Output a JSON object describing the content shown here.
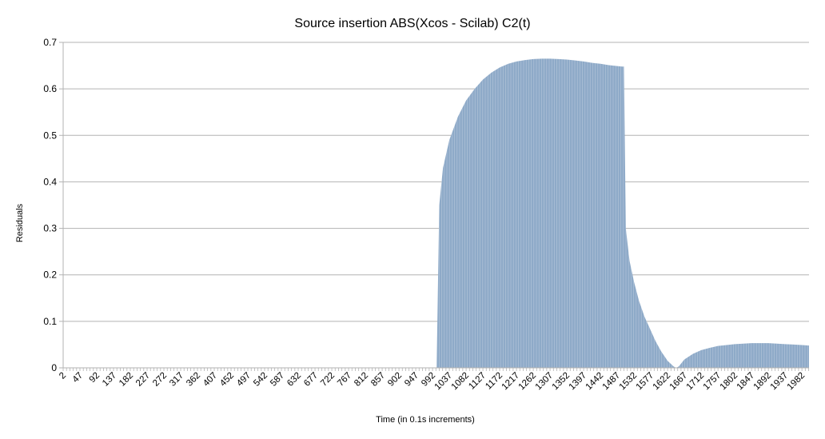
{
  "chart_data": {
    "type": "bar",
    "title": "Source insertion ABS(Xcos - Scilab) C2(t)",
    "xlabel": "Time (in 0.1s increments)",
    "ylabel": "Residuals",
    "ylim": [
      0,
      0.7
    ],
    "yticks": [
      "0",
      "0.1",
      "0.2",
      "0.3",
      "0.4",
      "0.5",
      "0.6",
      "0.7"
    ],
    "grid": true,
    "legend": "none",
    "bar_color": "#8eaac8",
    "x_range": [
      2,
      2001
    ],
    "xtick_labels": [
      "2",
      "47",
      "92",
      "137",
      "182",
      "227",
      "272",
      "317",
      "362",
      "407",
      "452",
      "497",
      "542",
      "587",
      "632",
      "677",
      "722",
      "767",
      "812",
      "857",
      "902",
      "947",
      "992",
      "1037",
      "1082",
      "1127",
      "1172",
      "1217",
      "1262",
      "1307",
      "1352",
      "1397",
      "1442",
      "1487",
      "1532",
      "1577",
      "1622",
      "1667",
      "1712",
      "1757",
      "1802",
      "1847",
      "1892",
      "1937",
      "1982"
    ],
    "series": [
      {
        "x": [
          2,
          992,
          1003,
          1010,
          1020,
          1037,
          1060,
          1082,
          1105,
          1127,
          1150,
          1172,
          1195,
          1217,
          1240,
          1262,
          1285,
          1307,
          1330,
          1352,
          1375,
          1397,
          1420,
          1442,
          1465,
          1487,
          1500,
          1505,
          1510,
          1520,
          1532,
          1545,
          1560,
          1577,
          1590,
          1605,
          1622,
          1638,
          1645,
          1652,
          1667,
          1690,
          1712,
          1735,
          1757,
          1780,
          1802,
          1825,
          1847,
          1870,
          1892,
          1915,
          1937,
          1960,
          1982,
          2001
        ],
        "values": [
          0,
          0,
          0,
          0.35,
          0.43,
          0.49,
          0.54,
          0.575,
          0.6,
          0.62,
          0.635,
          0.646,
          0.654,
          0.659,
          0.662,
          0.664,
          0.665,
          0.665,
          0.664,
          0.663,
          0.661,
          0.659,
          0.656,
          0.654,
          0.651,
          0.649,
          0.648,
          0.648,
          0.3,
          0.23,
          0.185,
          0.145,
          0.11,
          0.08,
          0.057,
          0.035,
          0.015,
          0.003,
          0.0,
          0.003,
          0.018,
          0.03,
          0.038,
          0.043,
          0.047,
          0.049,
          0.051,
          0.052,
          0.053,
          0.053,
          0.053,
          0.052,
          0.051,
          0.05,
          0.049,
          0.048
        ]
      }
    ]
  }
}
